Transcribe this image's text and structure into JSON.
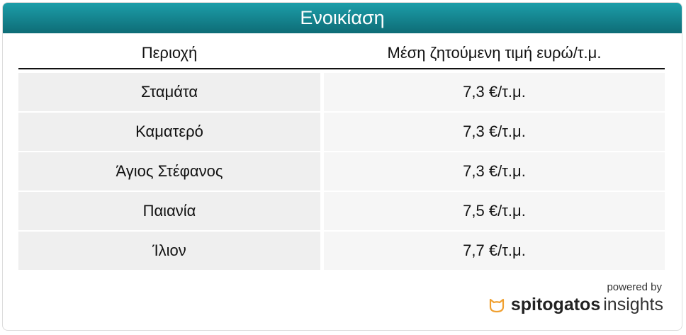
{
  "title": "Ενοικίαση",
  "table": {
    "headers": [
      "Περιοχή",
      "Μέση ζητούμενη τιμή ευρώ/τ.μ."
    ],
    "rows": [
      [
        "Σταμάτα",
        "7,3 €/τ.μ."
      ],
      [
        "Καματερό",
        "7,3 €/τ.μ."
      ],
      [
        "Άγιος Στέφανος",
        "7,3 €/τ.μ."
      ],
      [
        "Παιανία",
        "7,5 €/τ.μ."
      ],
      [
        "Ίλιον",
        "7,7 €/τ.μ."
      ]
    ]
  },
  "footer": {
    "powered_by": "powered by",
    "brand_bold": "spitogatos",
    "brand_light": "insights",
    "logo_icon": "cat-icon",
    "logo_color": "#f0a030"
  },
  "colors": {
    "title_bar": "#138591"
  }
}
